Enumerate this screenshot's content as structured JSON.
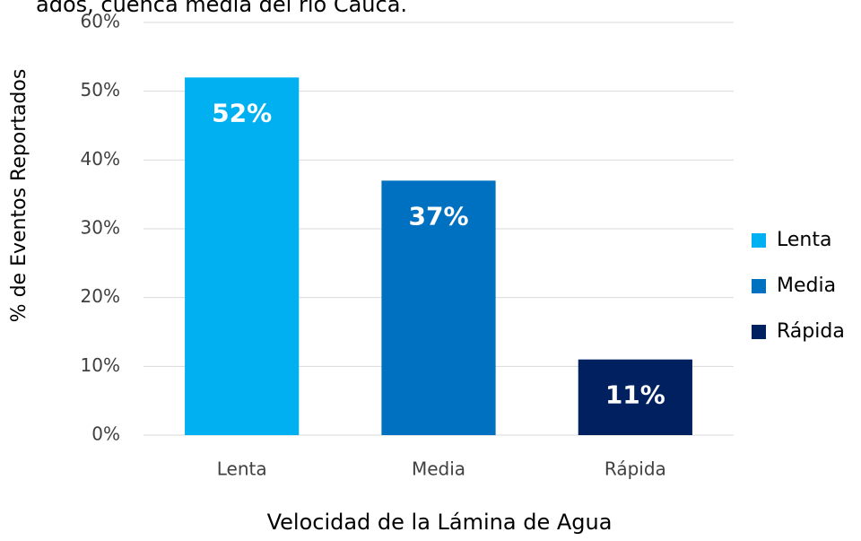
{
  "chart_data": {
    "type": "bar",
    "title": "ados, cuenca media del río Cauca.",
    "x_label": "Velocidad de la Lámina de Agua",
    "y_label": "% de Eventos Reportados",
    "categories": [
      "Lenta",
      "Media",
      "Rápida"
    ],
    "values": [
      52,
      37,
      11
    ],
    "value_labels": [
      "52%",
      "37%",
      "11%"
    ],
    "colors": [
      "#00b0f0",
      "#0070c0",
      "#002060"
    ],
    "ylim": [
      0,
      60
    ],
    "yticks": [
      {
        "value": 0,
        "label": "0%"
      },
      {
        "value": 10,
        "label": "10%"
      },
      {
        "value": 20,
        "label": "20%"
      },
      {
        "value": 30,
        "label": "30%"
      },
      {
        "value": 40,
        "label": "40%"
      },
      {
        "value": 50,
        "label": "50%"
      },
      {
        "value": 60,
        "label": "60%"
      }
    ],
    "grid": true,
    "legend": "right"
  }
}
